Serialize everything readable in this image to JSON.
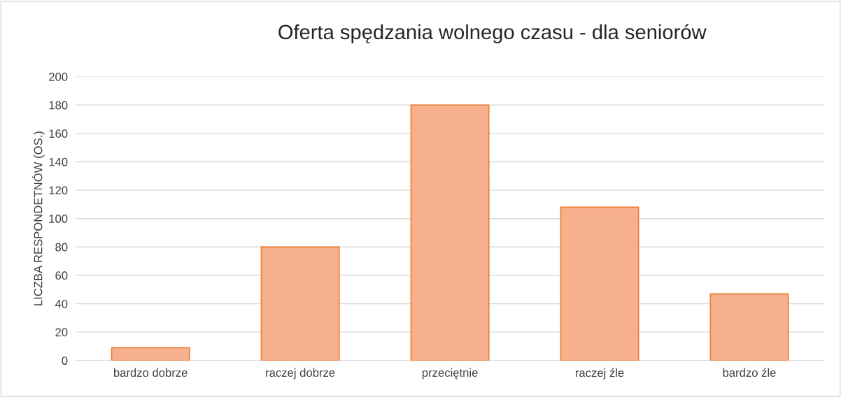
{
  "chart_data": {
    "type": "bar",
    "title": "Oferta spędzania wolnego czasu - dla seniorów",
    "ylabel": "LICZBA RESPONDETNÓW (OS.)",
    "categories": [
      "bardzo dobrze",
      "raczej dobrze",
      "przeciętnie",
      "raczej źle",
      "bardzo źle"
    ],
    "values": [
      9,
      80,
      180,
      108,
      47
    ],
    "color": "#f6b08e",
    "ylim": [
      0,
      200
    ],
    "yticks": [
      0,
      20,
      40,
      60,
      80,
      100,
      120,
      140,
      160,
      180,
      200
    ],
    "grid": "y",
    "legend": false
  }
}
